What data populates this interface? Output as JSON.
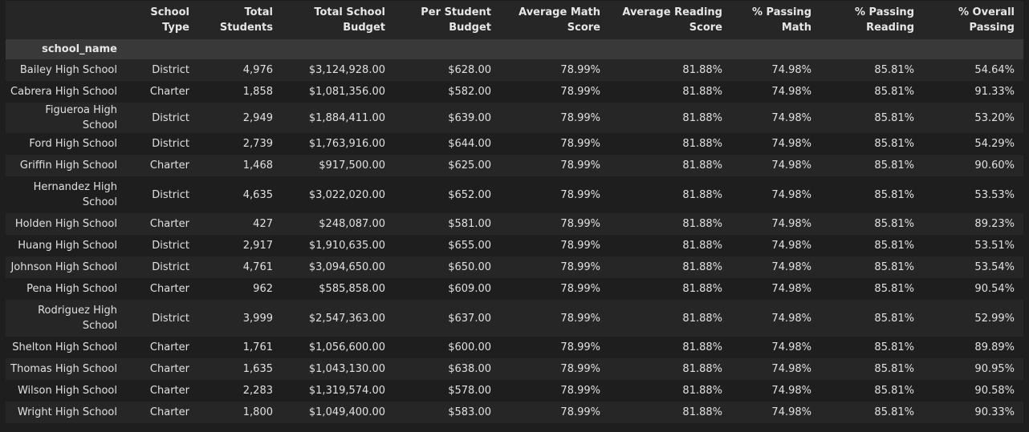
{
  "table": {
    "index_name": "school_name",
    "columns": [
      "School Type",
      "Total Students",
      "Total School Budget",
      "Per Student Budget",
      "Average Math Score",
      "Average Reading Score",
      "% Passing Math",
      "% Passing Reading",
      "% Overall Passing"
    ],
    "rows": [
      {
        "name": "Bailey High School",
        "cells": [
          "District",
          "4,976",
          "$3,124,928.00",
          "$628.00",
          "78.99%",
          "81.88%",
          "74.98%",
          "85.81%",
          "54.64%"
        ]
      },
      {
        "name": "Cabrera High School",
        "cells": [
          "Charter",
          "1,858",
          "$1,081,356.00",
          "$582.00",
          "78.99%",
          "81.88%",
          "74.98%",
          "85.81%",
          "91.33%"
        ]
      },
      {
        "name": "Figueroa High School",
        "cells": [
          "District",
          "2,949",
          "$1,884,411.00",
          "$639.00",
          "78.99%",
          "81.88%",
          "74.98%",
          "85.81%",
          "53.20%"
        ]
      },
      {
        "name": "Ford High School",
        "cells": [
          "District",
          "2,739",
          "$1,763,916.00",
          "$644.00",
          "78.99%",
          "81.88%",
          "74.98%",
          "85.81%",
          "54.29%"
        ]
      },
      {
        "name": "Griffin High School",
        "cells": [
          "Charter",
          "1,468",
          "$917,500.00",
          "$625.00",
          "78.99%",
          "81.88%",
          "74.98%",
          "85.81%",
          "90.60%"
        ]
      },
      {
        "name": "Hernandez High School",
        "cells": [
          "District",
          "4,635",
          "$3,022,020.00",
          "$652.00",
          "78.99%",
          "81.88%",
          "74.98%",
          "85.81%",
          "53.53%"
        ]
      },
      {
        "name": "Holden High School",
        "cells": [
          "Charter",
          "427",
          "$248,087.00",
          "$581.00",
          "78.99%",
          "81.88%",
          "74.98%",
          "85.81%",
          "89.23%"
        ]
      },
      {
        "name": "Huang High School",
        "cells": [
          "District",
          "2,917",
          "$1,910,635.00",
          "$655.00",
          "78.99%",
          "81.88%",
          "74.98%",
          "85.81%",
          "53.51%"
        ]
      },
      {
        "name": "Johnson High School",
        "cells": [
          "District",
          "4,761",
          "$3,094,650.00",
          "$650.00",
          "78.99%",
          "81.88%",
          "74.98%",
          "85.81%",
          "53.54%"
        ]
      },
      {
        "name": "Pena High School",
        "cells": [
          "Charter",
          "962",
          "$585,858.00",
          "$609.00",
          "78.99%",
          "81.88%",
          "74.98%",
          "85.81%",
          "90.54%"
        ]
      },
      {
        "name": "Rodriguez High School",
        "cells": [
          "District",
          "3,999",
          "$2,547,363.00",
          "$637.00",
          "78.99%",
          "81.88%",
          "74.98%",
          "85.81%",
          "52.99%"
        ]
      },
      {
        "name": "Shelton High School",
        "cells": [
          "Charter",
          "1,761",
          "$1,056,600.00",
          "$600.00",
          "78.99%",
          "81.88%",
          "74.98%",
          "85.81%",
          "89.89%"
        ]
      },
      {
        "name": "Thomas High School",
        "cells": [
          "Charter",
          "1,635",
          "$1,043,130.00",
          "$638.00",
          "78.99%",
          "81.88%",
          "74.98%",
          "85.81%",
          "90.95%"
        ]
      },
      {
        "name": "Wilson High School",
        "cells": [
          "Charter",
          "2,283",
          "$1,319,574.00",
          "$578.00",
          "78.99%",
          "81.88%",
          "74.98%",
          "85.81%",
          "90.58%"
        ]
      },
      {
        "name": "Wright High School",
        "cells": [
          "Charter",
          "1,800",
          "$1,049,400.00",
          "$583.00",
          "78.99%",
          "81.88%",
          "74.98%",
          "85.81%",
          "90.33%"
        ]
      }
    ]
  }
}
